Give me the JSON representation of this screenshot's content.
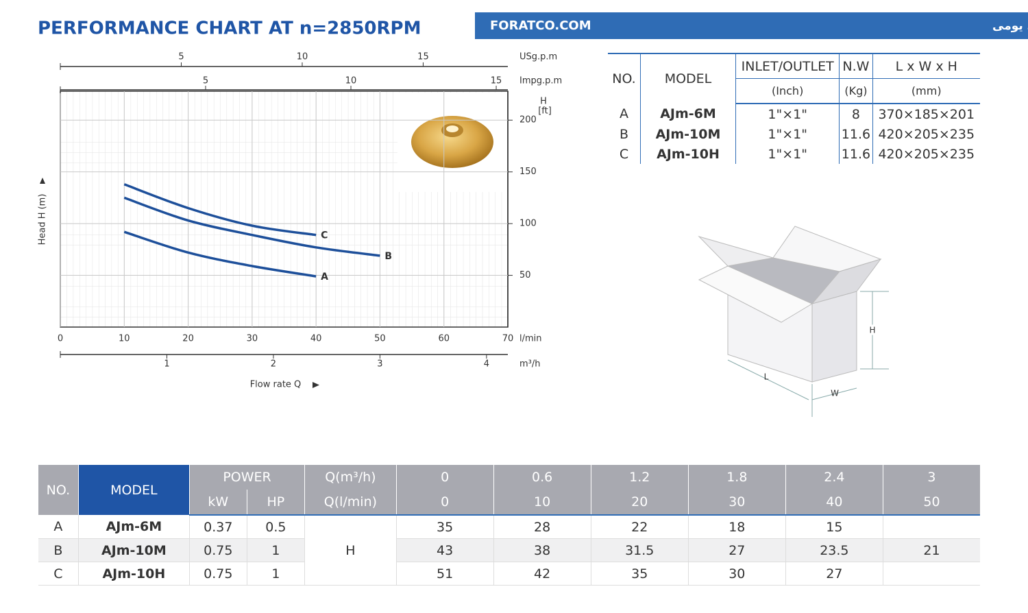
{
  "header": {
    "title": "PERFORMANCE CHART AT n=2850RPM",
    "site": "FORATCO.COM",
    "tagline": "شرکت فرات واردکننده انحصاری و مرکز پخش انواع پمپ‌های یومی"
  },
  "chart_data": {
    "type": "line",
    "y_axis_label": "Head H (m)",
    "y_unit_label": [
      "H",
      "[ft]"
    ],
    "x_label": "Flow rate Q",
    "x_unit": "l/min",
    "xlim": [
      0,
      70
    ],
    "xticks": [
      0,
      10,
      20,
      30,
      40,
      50,
      60,
      70
    ],
    "ylim": [
      0,
      228
    ],
    "yticks": [
      50,
      100,
      150,
      200
    ],
    "grid": true,
    "extra_x_axes": [
      {
        "label": "USg.p.m",
        "lim": [
          0,
          18.5
        ],
        "ticks": [
          5,
          10,
          15
        ]
      },
      {
        "label": "Impg.p.m",
        "lim": [
          0,
          15.4
        ],
        "ticks": [
          5,
          10,
          15
        ]
      },
      {
        "label": "m³/h",
        "lim": [
          0,
          4.2
        ],
        "ticks": [
          1,
          2,
          3,
          4
        ]
      }
    ],
    "series": [
      {
        "name": "A",
        "color": "#1d4f9a",
        "x": [
          10,
          20,
          30,
          40
        ],
        "values": [
          92,
          72,
          59,
          49
        ]
      },
      {
        "name": "B",
        "color": "#1d4f9a",
        "x": [
          10,
          20,
          30,
          40,
          50
        ],
        "values": [
          125,
          103,
          89,
          77,
          69
        ]
      },
      {
        "name": "C",
        "color": "#1d4f9a",
        "x": [
          10,
          20,
          30,
          40
        ],
        "values": [
          138,
          115,
          98,
          89
        ]
      }
    ]
  },
  "spec_table": {
    "header": [
      "NO.",
      "MODEL",
      "INLET/OUTLET",
      "N.W",
      "L x W x H"
    ],
    "units": [
      "(Inch)",
      "(Kg)",
      "(mm)"
    ],
    "rows": [
      [
        "A",
        "AJm-6M",
        "1\"×1\"",
        8,
        "370×185×201"
      ],
      [
        "B",
        "AJm-10M",
        "1\"×1\"",
        11.6,
        "420×205×235"
      ],
      [
        "C",
        "AJm-10H",
        "1\"×1\"",
        11.6,
        "420×205×235"
      ]
    ]
  },
  "box_labels": {
    "h": "H",
    "l": "L",
    "w": "W"
  },
  "performance_table": {
    "header": [
      "NO.",
      "MODEL",
      "POWER",
      "Q(m³/h)"
    ],
    "flow_m3h": [
      0,
      0.6,
      1.2,
      1.8,
      2.4,
      3
    ],
    "subheader": [
      "kW",
      "HP",
      "Q(l/min)"
    ],
    "flow_lmin": [
      0,
      10,
      20,
      30,
      40,
      50
    ],
    "head_label": "H",
    "rows": [
      {
        "no": "A",
        "model": "AJm-6M",
        "kw": 0.37,
        "hp": 0.5,
        "head": [
          35,
          28,
          22,
          18,
          15,
          null
        ]
      },
      {
        "no": "B",
        "model": "AJm-10M",
        "kw": 0.75,
        "hp": 1,
        "head": [
          43,
          38,
          31.5,
          27,
          23.5,
          21
        ]
      },
      {
        "no": "C",
        "model": "AJm-10H",
        "kw": 0.75,
        "hp": 1,
        "head": [
          51,
          42,
          35,
          30,
          27,
          null
        ]
      }
    ]
  }
}
